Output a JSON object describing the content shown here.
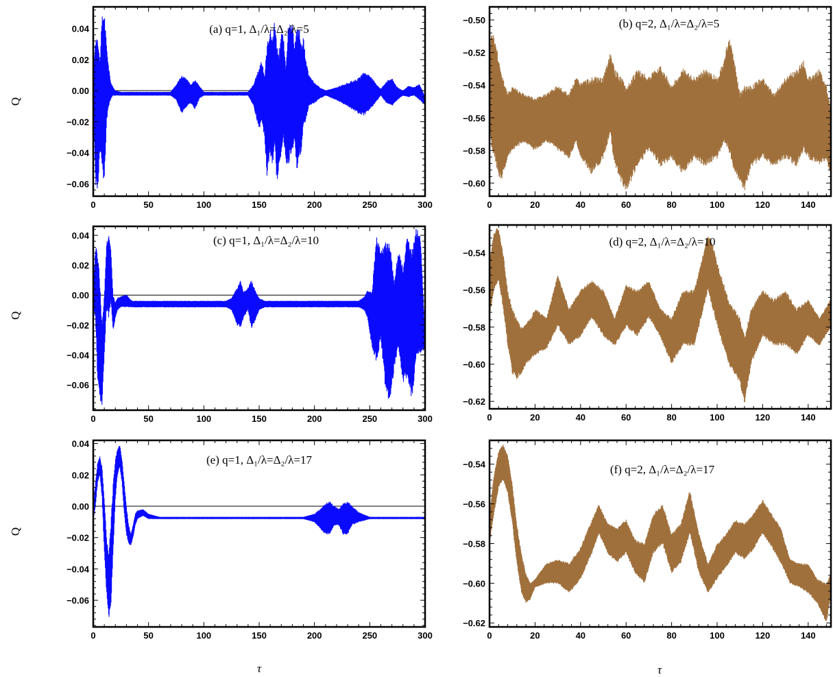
{
  "figure": {
    "ylabel": "Q",
    "xlabel": "τ"
  },
  "chart_data": [
    {
      "id": "a",
      "type": "line",
      "title": "(a) q=1, Δ₁/λ=Δ₂/λ=5",
      "color": "#0a0aff",
      "xlim": [
        0,
        300
      ],
      "ylim": [
        -0.068,
        0.054
      ],
      "xticks": [
        0,
        50,
        100,
        150,
        200,
        250,
        300
      ],
      "yticks": [
        -0.06,
        -0.04,
        -0.02,
        0.0,
        0.02,
        0.04
      ],
      "yticklabels": [
        "−0.06",
        "−0.04",
        "−0.02",
        "0.00",
        "0.02",
        "0.04"
      ],
      "zero_line": true,
      "envelope": {
        "x": [
          0,
          2,
          4,
          6,
          8,
          10,
          12,
          14,
          16,
          18,
          20,
          25,
          70,
          75,
          80,
          85,
          88,
          92,
          96,
          100,
          140,
          145,
          150,
          152,
          155,
          157,
          160,
          162,
          164,
          166,
          168,
          170,
          172,
          174,
          176,
          178,
          180,
          182,
          184,
          186,
          188,
          190,
          192,
          195,
          200,
          205,
          210,
          220,
          230,
          240,
          245,
          250,
          255,
          260,
          265,
          270,
          275,
          280,
          285,
          290,
          295,
          300
        ],
        "upper": [
          0.01,
          0.035,
          0.038,
          0.02,
          0.048,
          0.052,
          0.03,
          0.015,
          0.005,
          0.002,
          0.0,
          -0.001,
          -0.001,
          0.004,
          0.01,
          0.007,
          0.004,
          0.007,
          0.003,
          -0.001,
          -0.001,
          0.004,
          0.015,
          0.02,
          0.01,
          0.03,
          0.04,
          0.035,
          0.045,
          0.03,
          0.025,
          0.04,
          0.035,
          0.015,
          0.04,
          0.043,
          0.042,
          0.03,
          0.04,
          0.042,
          0.03,
          0.035,
          0.02,
          0.01,
          0.005,
          0.002,
          0.0,
          0.002,
          0.005,
          0.008,
          0.012,
          0.01,
          0.005,
          0.001,
          0.006,
          0.008,
          0.002,
          0.0,
          0.003,
          0.002,
          0.004,
          -0.004
        ],
        "lower": [
          -0.01,
          -0.06,
          -0.066,
          -0.04,
          -0.05,
          -0.063,
          -0.02,
          -0.01,
          -0.005,
          -0.003,
          -0.003,
          -0.003,
          -0.003,
          -0.006,
          -0.015,
          -0.01,
          -0.008,
          -0.012,
          -0.005,
          -0.003,
          -0.003,
          -0.01,
          -0.025,
          -0.02,
          -0.03,
          -0.056,
          -0.04,
          -0.05,
          -0.035,
          -0.06,
          -0.05,
          -0.04,
          -0.03,
          -0.045,
          -0.05,
          -0.042,
          -0.04,
          -0.03,
          -0.052,
          -0.045,
          -0.04,
          -0.025,
          -0.02,
          -0.01,
          -0.008,
          -0.005,
          -0.003,
          -0.006,
          -0.01,
          -0.015,
          -0.016,
          -0.012,
          -0.008,
          -0.003,
          -0.008,
          -0.01,
          -0.006,
          -0.003,
          -0.004,
          -0.003,
          -0.006,
          -0.009
        ]
      }
    },
    {
      "id": "b",
      "type": "line",
      "title": "(b) q=2, Δ₁/λ=Δ₂/λ=5",
      "color": "#a0703c",
      "xlim": [
        0,
        150
      ],
      "ylim": [
        -0.608,
        -0.492
      ],
      "xticks": [
        0,
        20,
        40,
        60,
        80,
        100,
        120,
        140
      ],
      "yticks": [
        -0.6,
        -0.58,
        -0.56,
        -0.54,
        -0.52,
        -0.5
      ],
      "yticklabels": [
        "−0.60",
        "−0.58",
        "−0.56",
        "−0.54",
        "−0.52",
        "−0.50"
      ],
      "zero_line": false,
      "envelope": {
        "x": [
          0,
          1,
          3,
          5,
          8,
          10,
          15,
          20,
          25,
          30,
          35,
          38,
          40,
          45,
          50,
          53,
          55,
          58,
          60,
          65,
          70,
          75,
          80,
          85,
          90,
          95,
          100,
          103,
          105,
          107,
          110,
          112,
          115,
          120,
          125,
          130,
          135,
          138,
          140,
          145,
          148,
          150
        ],
        "upper": [
          -0.52,
          -0.505,
          -0.515,
          -0.53,
          -0.545,
          -0.54,
          -0.545,
          -0.548,
          -0.545,
          -0.54,
          -0.545,
          -0.535,
          -0.538,
          -0.535,
          -0.535,
          -0.52,
          -0.53,
          -0.535,
          -0.54,
          -0.53,
          -0.535,
          -0.527,
          -0.54,
          -0.53,
          -0.535,
          -0.53,
          -0.535,
          -0.525,
          -0.51,
          -0.52,
          -0.545,
          -0.54,
          -0.54,
          -0.535,
          -0.545,
          -0.535,
          -0.53,
          -0.525,
          -0.535,
          -0.53,
          -0.54,
          -0.555
        ],
        "lower": [
          -0.57,
          -0.58,
          -0.59,
          -0.6,
          -0.585,
          -0.58,
          -0.575,
          -0.58,
          -0.575,
          -0.58,
          -0.585,
          -0.575,
          -0.585,
          -0.595,
          -0.585,
          -0.57,
          -0.59,
          -0.6,
          -0.606,
          -0.59,
          -0.58,
          -0.59,
          -0.585,
          -0.595,
          -0.585,
          -0.59,
          -0.585,
          -0.575,
          -0.58,
          -0.59,
          -0.6,
          -0.605,
          -0.59,
          -0.585,
          -0.59,
          -0.585,
          -0.59,
          -0.58,
          -0.585,
          -0.59,
          -0.585,
          -0.597
        ]
      }
    },
    {
      "id": "c",
      "type": "line",
      "title": "(c) q=1, Δ₁/λ=Δ₂/λ=10",
      "color": "#0a0aff",
      "xlim": [
        0,
        300
      ],
      "ylim": [
        -0.077,
        0.046
      ],
      "xticks": [
        0,
        50,
        100,
        150,
        200,
        250,
        300
      ],
      "yticks": [
        -0.06,
        -0.04,
        -0.02,
        0.0,
        0.02,
        0.04
      ],
      "yticklabels": [
        "−0.06",
        "−0.04",
        "−0.02",
        "0.00",
        "0.02",
        "0.04"
      ],
      "zero_line": true,
      "envelope": {
        "x": [
          0,
          2,
          4,
          6,
          8,
          10,
          12,
          14,
          16,
          18,
          20,
          22,
          25,
          30,
          35,
          120,
          125,
          130,
          133,
          136,
          140,
          143,
          146,
          150,
          155,
          240,
          245,
          248,
          252,
          256,
          260,
          264,
          268,
          272,
          276,
          280,
          284,
          288,
          292,
          296,
          300
        ],
        "upper": [
          0.005,
          0.032,
          0.03,
          0.01,
          -0.02,
          0.0,
          0.035,
          0.041,
          0.03,
          0.0,
          -0.005,
          -0.002,
          -0.001,
          0.0,
          -0.004,
          -0.004,
          -0.002,
          0.005,
          0.01,
          0.002,
          0.005,
          0.01,
          0.004,
          -0.002,
          -0.004,
          -0.004,
          -0.001,
          0.003,
          0.002,
          0.04,
          0.03,
          0.035,
          0.038,
          0.01,
          0.03,
          0.02,
          0.04,
          0.03,
          0.046,
          0.04,
          -0.03
        ],
        "lower": [
          -0.01,
          -0.015,
          -0.06,
          -0.07,
          -0.074,
          -0.04,
          -0.01,
          -0.015,
          -0.005,
          -0.025,
          -0.015,
          -0.01,
          -0.008,
          -0.008,
          -0.008,
          -0.008,
          -0.01,
          -0.02,
          -0.022,
          -0.015,
          -0.01,
          -0.023,
          -0.018,
          -0.01,
          -0.008,
          -0.008,
          -0.01,
          -0.015,
          -0.035,
          -0.045,
          -0.03,
          -0.062,
          -0.074,
          -0.05,
          -0.035,
          -0.06,
          -0.055,
          -0.07,
          -0.045,
          -0.04,
          -0.035
        ]
      }
    },
    {
      "id": "d",
      "type": "line",
      "title": "(d) q=2, Δ₁/λ=Δ₂/λ=10",
      "color": "#a0703c",
      "xlim": [
        0,
        150
      ],
      "ylim": [
        -0.624,
        -0.525
      ],
      "xticks": [
        0,
        20,
        40,
        60,
        80,
        100,
        120,
        140
      ],
      "yticks": [
        -0.62,
        -0.6,
        -0.58,
        -0.56,
        -0.54
      ],
      "yticklabels": [
        "−0.62",
        "−0.60",
        "−0.58",
        "−0.56",
        "−0.54"
      ],
      "zero_line": false,
      "envelope": {
        "x": [
          0,
          2,
          4,
          6,
          8,
          10,
          12,
          14,
          16,
          18,
          20,
          25,
          30,
          35,
          40,
          45,
          50,
          55,
          60,
          65,
          70,
          75,
          80,
          85,
          90,
          93,
          96,
          98,
          100,
          105,
          110,
          112,
          115,
          120,
          125,
          130,
          135,
          140,
          145,
          150
        ],
        "upper": [
          -0.545,
          -0.528,
          -0.526,
          -0.54,
          -0.56,
          -0.57,
          -0.575,
          -0.58,
          -0.578,
          -0.575,
          -0.57,
          -0.575,
          -0.552,
          -0.57,
          -0.56,
          -0.555,
          -0.56,
          -0.575,
          -0.557,
          -0.56,
          -0.555,
          -0.57,
          -0.575,
          -0.56,
          -0.56,
          -0.545,
          -0.53,
          -0.535,
          -0.545,
          -0.565,
          -0.575,
          -0.585,
          -0.57,
          -0.56,
          -0.565,
          -0.56,
          -0.57,
          -0.565,
          -0.575,
          -0.565
        ],
        "lower": [
          -0.575,
          -0.56,
          -0.555,
          -0.57,
          -0.59,
          -0.605,
          -0.608,
          -0.605,
          -0.6,
          -0.598,
          -0.595,
          -0.592,
          -0.58,
          -0.59,
          -0.585,
          -0.575,
          -0.585,
          -0.59,
          -0.58,
          -0.585,
          -0.575,
          -0.585,
          -0.6,
          -0.59,
          -0.59,
          -0.575,
          -0.56,
          -0.57,
          -0.58,
          -0.6,
          -0.61,
          -0.622,
          -0.6,
          -0.585,
          -0.59,
          -0.59,
          -0.595,
          -0.585,
          -0.59,
          -0.58
        ]
      }
    },
    {
      "id": "e",
      "type": "line",
      "title": "(e) q=1, Δ₁/λ=Δ₂/λ=17",
      "color": "#0a0aff",
      "xlim": [
        0,
        300
      ],
      "ylim": [
        -0.077,
        0.042
      ],
      "xticks": [
        0,
        50,
        100,
        150,
        200,
        250,
        300
      ],
      "yticks": [
        -0.06,
        -0.04,
        -0.02,
        0.0,
        0.02,
        0.04
      ],
      "yticklabels": [
        "−0.06",
        "−0.04",
        "−0.02",
        "0.00",
        "0.02",
        "0.04"
      ],
      "zero_line": true,
      "envelope": {
        "x": [
          0,
          2,
          4,
          6,
          8,
          10,
          12,
          14,
          16,
          18,
          20,
          22,
          24,
          26,
          28,
          30,
          32,
          34,
          36,
          38,
          40,
          45,
          50,
          55,
          60,
          190,
          200,
          205,
          210,
          214,
          218,
          222,
          226,
          230,
          234,
          240,
          250,
          300
        ],
        "upper": [
          0.0,
          0.015,
          0.028,
          0.032,
          0.025,
          0.005,
          -0.02,
          -0.03,
          -0.01,
          0.015,
          0.03,
          0.037,
          0.039,
          0.03,
          0.015,
          0.0,
          -0.012,
          -0.018,
          -0.012,
          -0.005,
          -0.003,
          -0.002,
          -0.005,
          -0.006,
          -0.007,
          -0.007,
          -0.005,
          -0.002,
          0.002,
          0.003,
          0.0,
          -0.002,
          0.002,
          0.003,
          0.0,
          -0.004,
          -0.007,
          -0.007
        ],
        "lower": [
          -0.01,
          0.0,
          0.015,
          0.02,
          0.005,
          -0.03,
          -0.055,
          -0.072,
          -0.065,
          -0.03,
          0.005,
          0.02,
          0.025,
          0.015,
          -0.005,
          -0.018,
          -0.024,
          -0.025,
          -0.02,
          -0.012,
          -0.008,
          -0.006,
          -0.008,
          -0.008,
          -0.008,
          -0.008,
          -0.01,
          -0.014,
          -0.018,
          -0.018,
          -0.012,
          -0.012,
          -0.018,
          -0.018,
          -0.012,
          -0.01,
          -0.008,
          -0.008
        ]
      }
    },
    {
      "id": "f",
      "type": "line",
      "title": "(f) q=2, Δ₁/λ=Δ₂/λ=17",
      "color": "#a0703c",
      "xlim": [
        0,
        150
      ],
      "ylim": [
        -0.622,
        -0.528
      ],
      "xticks": [
        0,
        20,
        40,
        60,
        80,
        100,
        120,
        140
      ],
      "yticks": [
        -0.62,
        -0.6,
        -0.58,
        -0.56,
        -0.54
      ],
      "yticklabels": [
        "−0.62",
        "−0.60",
        "−0.58",
        "−0.56",
        "−0.54"
      ],
      "zero_line": false,
      "envelope": {
        "x": [
          0,
          2,
          4,
          6,
          8,
          10,
          12,
          14,
          16,
          18,
          20,
          25,
          30,
          35,
          40,
          45,
          48,
          52,
          56,
          60,
          64,
          68,
          72,
          76,
          80,
          84,
          88,
          92,
          96,
          100,
          104,
          108,
          112,
          116,
          120,
          124,
          128,
          132,
          136,
          140,
          144,
          148,
          150
        ],
        "upper": [
          -0.565,
          -0.545,
          -0.533,
          -0.53,
          -0.535,
          -0.55,
          -0.57,
          -0.585,
          -0.595,
          -0.6,
          -0.598,
          -0.59,
          -0.588,
          -0.59,
          -0.582,
          -0.568,
          -0.56,
          -0.57,
          -0.572,
          -0.568,
          -0.578,
          -0.58,
          -0.565,
          -0.56,
          -0.575,
          -0.57,
          -0.553,
          -0.575,
          -0.59,
          -0.58,
          -0.575,
          -0.568,
          -0.57,
          -0.565,
          -0.558,
          -0.565,
          -0.572,
          -0.588,
          -0.59,
          -0.59,
          -0.598,
          -0.6,
          -0.595
        ],
        "lower": [
          -0.58,
          -0.565,
          -0.552,
          -0.548,
          -0.555,
          -0.57,
          -0.59,
          -0.605,
          -0.61,
          -0.608,
          -0.602,
          -0.6,
          -0.6,
          -0.605,
          -0.598,
          -0.585,
          -0.575,
          -0.585,
          -0.59,
          -0.585,
          -0.595,
          -0.6,
          -0.585,
          -0.58,
          -0.595,
          -0.59,
          -0.575,
          -0.595,
          -0.605,
          -0.598,
          -0.592,
          -0.585,
          -0.588,
          -0.583,
          -0.575,
          -0.582,
          -0.59,
          -0.6,
          -0.602,
          -0.605,
          -0.61,
          -0.62,
          -0.605
        ]
      }
    }
  ]
}
